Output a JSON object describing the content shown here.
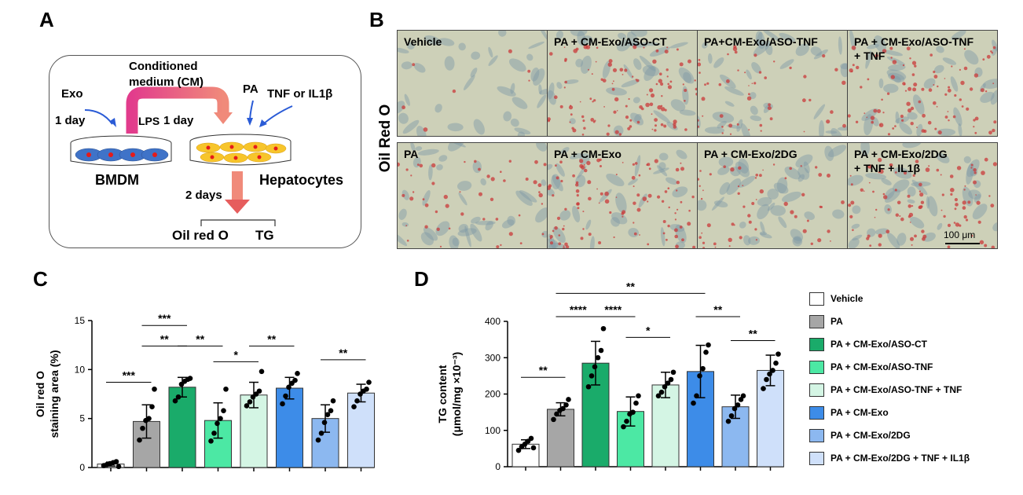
{
  "panels": {
    "a": "A",
    "b": "B",
    "c": "C",
    "d": "D"
  },
  "schematic": {
    "exo": "Exo",
    "conditioned_medium_line1": "Conditioned",
    "conditioned_medium_line2": "medium (CM)",
    "pa": "PA",
    "tnf_il1b": "TNF or IL1β",
    "one_day_left": "1 day",
    "lps": "LPS",
    "one_day_right": "1 day",
    "bmdm": "BMDM",
    "hepatocytes": "Hepatocytes",
    "two_days": "2 days",
    "oil_red_o": "Oil red O",
    "tg": "TG"
  },
  "micrographs": {
    "row_label": "Oil Red O",
    "scale_bar": "100 μm",
    "tiles": [
      {
        "line1": "Vehicle",
        "line2": ""
      },
      {
        "line1": "PA + CM-Exo/ASO-CT",
        "line2": ""
      },
      {
        "line1": "PA+CM-Exo/ASO-TNF",
        "line2": ""
      },
      {
        "line1": "PA + CM-Exo/ASO-TNF",
        "line2": "+ TNF"
      },
      {
        "line1": "PA",
        "line2": ""
      },
      {
        "line1": "PA + CM-Exo",
        "line2": ""
      },
      {
        "line1": "PA + CM-Exo/2DG",
        "line2": ""
      },
      {
        "line1": "PA + CM-Exo/2DG",
        "line2": "+ TNF + IL1β"
      }
    ]
  },
  "legend": [
    {
      "label": "Vehicle",
      "color": "#ffffff"
    },
    {
      "label": "PA",
      "color": "#a6a6a6"
    },
    {
      "label": "PA + CM-Exo/ASO-CT",
      "color": "#1aab6a"
    },
    {
      "label": "PA + CM-Exo/ASO-TNF",
      "color": "#4ce8a4"
    },
    {
      "label": "PA + CM-Exo/ASO-TNF + TNF",
      "color": "#d4f5e4"
    },
    {
      "label": "PA + CM-Exo",
      "color": "#3d8ce8"
    },
    {
      "label": "PA + CM-Exo/2DG",
      "color": "#8cb8f0"
    },
    {
      "label": "PA + CM-Exo/2DG + TNF + IL1β",
      "color": "#cfe0fa"
    }
  ],
  "chart_data": [
    {
      "type": "bar",
      "panel": "C",
      "ylabel_line1": "Oil red O",
      "ylabel_line2": "staining area (%)",
      "ylim": [
        0,
        15
      ],
      "yticks": [
        "0",
        "5",
        "10",
        "15"
      ],
      "categories": [
        "Vehicle",
        "PA",
        "PA + CM-Exo/ASO-CT",
        "PA + CM-Exo/ASO-TNF",
        "PA + CM-Exo/ASO-TNF + TNF",
        "PA + CM-Exo",
        "PA + CM-Exo/2DG",
        "PA + CM-Exo/2DG + TNF + IL1β"
      ],
      "values": [
        0.35,
        4.7,
        8.2,
        4.8,
        7.4,
        8.1,
        5.0,
        7.6
      ],
      "errors": [
        0.2,
        1.7,
        1.0,
        1.8,
        1.3,
        1.1,
        1.4,
        0.9
      ],
      "points": [
        [
          0.2,
          0.3,
          0.4,
          0.5,
          0.6,
          0.1
        ],
        [
          2.8,
          4.0,
          4.8,
          5.0,
          6.2,
          8.0
        ],
        [
          6.8,
          7.2,
          8.5,
          8.8,
          9.0,
          9.1
        ],
        [
          2.7,
          3.5,
          4.5,
          5.0,
          5.8,
          8.0
        ],
        [
          6.3,
          6.7,
          7.2,
          7.5,
          7.8,
          9.8
        ],
        [
          6.5,
          7.3,
          8.2,
          8.6,
          8.9,
          9.6
        ],
        [
          2.8,
          3.5,
          4.6,
          5.4,
          5.8,
          6.8
        ],
        [
          6.2,
          6.8,
          7.5,
          7.8,
          8.0,
          8.7
        ]
      ],
      "significance": [
        {
          "from": 0,
          "to": 1,
          "y": 8.7,
          "label": "***"
        },
        {
          "from": 1,
          "to": 2,
          "y": 14.5,
          "label": "***"
        },
        {
          "from": 1,
          "to": 2,
          "y": 12.4,
          "label": "**"
        },
        {
          "from": 2,
          "to": 3,
          "y": 12.4,
          "label": "**"
        },
        {
          "from": 3,
          "to": 4,
          "y": 10.8,
          "label": "*"
        },
        {
          "from": 4,
          "to": 5,
          "y": 12.4,
          "label": "**"
        },
        {
          "from": 6,
          "to": 7,
          "y": 11.0,
          "label": "**"
        }
      ]
    },
    {
      "type": "bar",
      "panel": "D",
      "ylabel_line1": "TG content",
      "ylabel_line2": "(μmol/mg ×10⁻³)",
      "ylim": [
        0,
        400
      ],
      "yticks": [
        "0",
        "100",
        "200",
        "300",
        "400"
      ],
      "categories": [
        "Vehicle",
        "PA",
        "PA + CM-Exo/ASO-CT",
        "PA + CM-Exo/ASO-TNF",
        "PA + CM-Exo/ASO-TNF + TNF",
        "PA + CM-Exo",
        "PA + CM-Exo/2DG",
        "PA + CM-Exo/2DG + TNF + IL1β"
      ],
      "values": [
        62,
        158,
        285,
        152,
        225,
        262,
        165,
        265
      ],
      "errors": [
        12,
        18,
        60,
        40,
        35,
        72,
        32,
        42
      ],
      "points": [
        [
          45,
          55,
          62,
          70,
          78,
          52
        ],
        [
          130,
          145,
          155,
          160,
          170,
          185
        ],
        [
          220,
          250,
          275,
          300,
          320,
          380
        ],
        [
          110,
          125,
          145,
          150,
          175,
          195
        ],
        [
          195,
          205,
          220,
          230,
          240,
          260
        ],
        [
          175,
          195,
          250,
          270,
          315,
          335
        ],
        [
          125,
          140,
          160,
          170,
          185,
          195
        ],
        [
          215,
          240,
          255,
          265,
          285,
          310
        ]
      ],
      "significance": [
        {
          "from": 0,
          "to": 1,
          "y": 246,
          "label": "**"
        },
        {
          "from": 1,
          "to": 2,
          "y": 413,
          "label": "****"
        },
        {
          "from": 1,
          "to": 5,
          "y": 477,
          "label": "**"
        },
        {
          "from": 2,
          "to": 3,
          "y": 413,
          "label": "****"
        },
        {
          "from": 3,
          "to": 4,
          "y": 356,
          "label": "*"
        },
        {
          "from": 5,
          "to": 6,
          "y": 413,
          "label": "**"
        },
        {
          "from": 6,
          "to": 7,
          "y": 347,
          "label": "**"
        }
      ]
    }
  ]
}
